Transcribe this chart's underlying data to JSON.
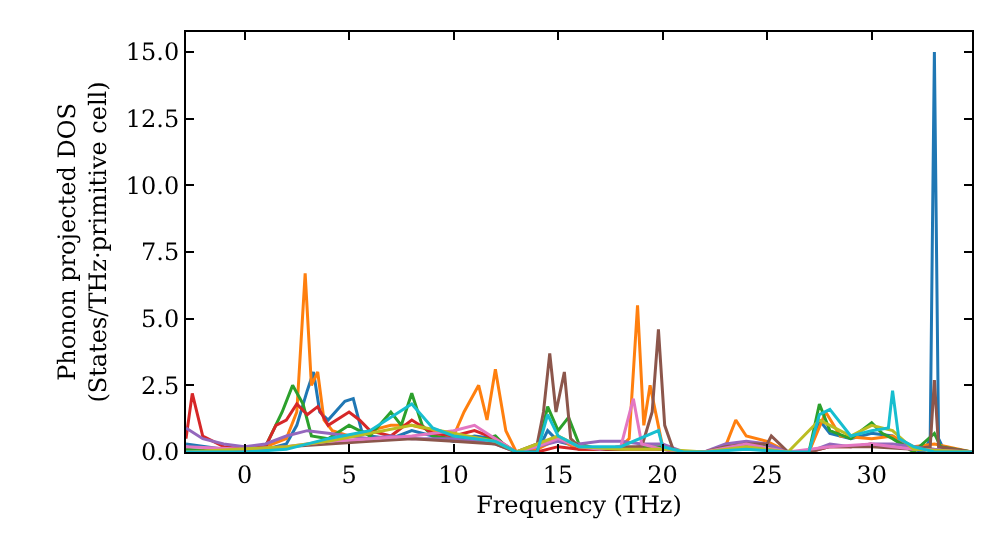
{
  "chart_data": {
    "type": "line",
    "xlabel": "Frequency (THz)",
    "ylabel": "Phonon projected DOS\n(States/THz·primitive cell)",
    "xlim": [
      -2.8,
      34.8
    ],
    "ylim": [
      0,
      15.75
    ],
    "xticks": [
      0,
      5,
      10,
      15,
      20,
      25,
      30
    ],
    "yticks": [
      {
        "value": 0,
        "label": "0.0"
      },
      {
        "value": 2.5,
        "label": "2.5"
      },
      {
        "value": 5,
        "label": "5.0"
      },
      {
        "value": 7.5,
        "label": "7.5"
      },
      {
        "value": 10,
        "label": "10.0"
      },
      {
        "value": 12.5,
        "label": "12.5"
      },
      {
        "value": 15,
        "label": "15.0"
      }
    ],
    "grid": false,
    "marker": "none",
    "line_style": "solid",
    "series": [
      {
        "color": "#1f77b4",
        "x": [
          -2.8,
          -1,
          1,
          2,
          2.5,
          3,
          3.3,
          3.6,
          4,
          4.8,
          5.2,
          5.6,
          6,
          7,
          8,
          9,
          10,
          11,
          12,
          12.5,
          13,
          14,
          14.5,
          15,
          15.5,
          16,
          17,
          18,
          19,
          20,
          21,
          22,
          23,
          24,
          25,
          26,
          27,
          27.5,
          28,
          29,
          30,
          31,
          31.5,
          32,
          32.5,
          32.8,
          33,
          33.2,
          33.5,
          34.8
        ],
        "values": [
          0.3,
          0.1,
          0.1,
          0.3,
          1.0,
          2.3,
          3.0,
          1.5,
          1.2,
          1.9,
          2.0,
          0.8,
          0.6,
          0.5,
          0.8,
          0.6,
          0.4,
          0.6,
          0.5,
          0.2,
          0,
          0,
          0.8,
          0.4,
          0.3,
          0.1,
          0.1,
          0.1,
          0.2,
          0.1,
          0,
          0,
          0.1,
          0.2,
          0.2,
          0,
          0,
          1.2,
          0.7,
          0.5,
          0.7,
          0.6,
          0.3,
          0.1,
          0,
          0.5,
          15.0,
          0.5,
          0,
          0
        ]
      },
      {
        "color": "#ff7f0e",
        "x": [
          0,
          1,
          2,
          2.5,
          2.9,
          3.2,
          3.5,
          3.8,
          4.2,
          5,
          6,
          7,
          8,
          9,
          10,
          10.5,
          11.2,
          11.6,
          12,
          12.5,
          13,
          14,
          15,
          16,
          17,
          18,
          18.4,
          18.8,
          19.1,
          19.4,
          20,
          21,
          22,
          23,
          23.5,
          24,
          25,
          26,
          27,
          27.8,
          28.5,
          30,
          31,
          32,
          33,
          34.8
        ],
        "values": [
          0.1,
          0.2,
          0.5,
          1.5,
          6.7,
          2.5,
          3.0,
          1.2,
          0.8,
          0.6,
          0.8,
          1.0,
          1.0,
          0.8,
          0.6,
          1.5,
          2.5,
          1.2,
          3.1,
          0.8,
          0,
          0.1,
          0.5,
          0.1,
          0.1,
          0.2,
          0.5,
          5.5,
          1.0,
          2.5,
          0.2,
          0,
          0,
          0.2,
          1.2,
          0.6,
          0.4,
          0,
          0,
          1.5,
          0.6,
          0.5,
          0.6,
          0.2,
          0.3,
          0
        ]
      },
      {
        "color": "#2ca02c",
        "x": [
          -2.8,
          -1,
          0,
          1,
          1.8,
          2.3,
          2.8,
          3.2,
          4,
          5,
          6,
          7,
          7.5,
          8,
          8.5,
          9,
          10,
          11,
          12,
          12.5,
          13,
          14,
          14.5,
          15,
          15.5,
          16,
          17,
          18,
          19,
          20,
          21,
          22,
          23,
          24,
          25,
          26,
          27,
          27.5,
          28,
          29,
          30,
          30.5,
          31,
          32,
          33,
          33.3,
          34.8
        ],
        "values": [
          0.1,
          0,
          0,
          0.2,
          1.5,
          2.5,
          1.8,
          0.6,
          0.5,
          1.0,
          0.6,
          1.5,
          1.0,
          2.2,
          1.0,
          0.6,
          0.5,
          0.4,
          0.6,
          0.2,
          0,
          0,
          1.7,
          0.8,
          1.3,
          0.3,
          0.1,
          0.1,
          0.2,
          0.2,
          0,
          0,
          0.1,
          0.2,
          0.2,
          0,
          0,
          1.8,
          0.8,
          0.5,
          1.1,
          0.7,
          0.5,
          0,
          0.7,
          0.2,
          0
        ]
      },
      {
        "color": "#d62728",
        "x": [
          -2.8,
          -2.5,
          -2,
          -1.5,
          -1,
          0,
          1,
          1.5,
          2,
          2.5,
          3,
          3.5,
          4,
          5,
          5.5,
          6,
          7,
          8,
          9,
          10,
          11,
          12,
          13,
          14,
          15,
          16,
          17,
          18,
          19,
          20,
          21,
          22,
          23,
          24,
          25,
          26,
          27,
          28,
          29,
          30
        ],
        "values": [
          0.5,
          2.2,
          0.6,
          0.4,
          0.2,
          0.1,
          0.2,
          1.0,
          1.2,
          1.8,
          1.4,
          1.7,
          1.0,
          1.5,
          1.2,
          0.8,
          0.6,
          1.2,
          0.7,
          0.6,
          0.8,
          0.5,
          0,
          0,
          0.2,
          0.1,
          0.1,
          0.1,
          0.1,
          0.1,
          0,
          0,
          0.1,
          0.1,
          0.1,
          0,
          0,
          0.2,
          0.2,
          0.3
        ]
      },
      {
        "color": "#9467bd",
        "x": [
          -2.8,
          -2,
          -1,
          0,
          1,
          2,
          3,
          4,
          5,
          6,
          7,
          8,
          9,
          10,
          11,
          12,
          13,
          14,
          15,
          16,
          17,
          18,
          19,
          20,
          21,
          22,
          23,
          24,
          25,
          26,
          27,
          28,
          29,
          30,
          31,
          32,
          33,
          34.8
        ],
        "values": [
          0.9,
          0.5,
          0.3,
          0.2,
          0.3,
          0.6,
          0.8,
          0.7,
          0.6,
          0.5,
          0.6,
          0.5,
          0.5,
          0.5,
          0.4,
          0.3,
          0,
          0.2,
          0.4,
          0.3,
          0.4,
          0.4,
          0.3,
          0.3,
          0,
          0,
          0.3,
          0.4,
          0.3,
          0,
          0,
          0.3,
          0.2,
          0.3,
          0.3,
          0.2,
          0.1,
          0
        ]
      },
      {
        "color": "#8c564b",
        "x": [
          -2.8,
          0,
          2,
          4,
          6,
          8,
          10,
          12,
          13,
          14,
          14.3,
          14.6,
          14.9,
          15.3,
          15.6,
          16,
          17,
          18,
          19,
          19.5,
          19.8,
          20.1,
          20.5,
          21,
          22,
          23,
          24,
          25,
          25.2,
          26,
          27,
          28,
          30,
          32,
          32.8,
          33,
          33.2,
          34.8
        ],
        "values": [
          0,
          0.1,
          0.2,
          0.3,
          0.4,
          0.5,
          0.4,
          0.3,
          0,
          0.3,
          1.5,
          3.7,
          1.5,
          3.0,
          0.5,
          0.2,
          0.1,
          0.2,
          0.2,
          1.5,
          4.6,
          1.0,
          0.1,
          0,
          0,
          0.2,
          0.3,
          0.3,
          0.6,
          0,
          0,
          0.2,
          0.2,
          0.1,
          0.2,
          2.7,
          0.2,
          0
        ]
      },
      {
        "color": "#e377c2",
        "x": [
          -2.8,
          0,
          2,
          4,
          6,
          8,
          10,
          11,
          12,
          13,
          14,
          15,
          16,
          17,
          18,
          18.6,
          19,
          20,
          21,
          22,
          24,
          26,
          28,
          30,
          32,
          34.8
        ],
        "values": [
          0.2,
          0.1,
          0.2,
          0.4,
          0.5,
          0.6,
          0.8,
          1.0,
          0.5,
          0,
          0.2,
          0.5,
          0.2,
          0.1,
          0.2,
          2.0,
          0.3,
          0.1,
          0,
          0,
          0.3,
          0,
          0.2,
          0.3,
          0.1,
          0
        ]
      },
      {
        "color": "#bcbd22",
        "x": [
          -2.8,
          2,
          4,
          6,
          8,
          10,
          12,
          13,
          14,
          15,
          16,
          18,
          20,
          22,
          24,
          26,
          27.5,
          28,
          29,
          30,
          31,
          32,
          34.8
        ],
        "values": [
          0,
          0.2,
          0.4,
          0.7,
          1.0,
          0.7,
          0.4,
          0,
          0.3,
          0.6,
          0.2,
          0.1,
          0.1,
          0,
          0.2,
          0,
          1.2,
          1.0,
          0.6,
          1.0,
          0.8,
          0.1,
          0
        ]
      },
      {
        "color": "#17becf",
        "x": [
          -2.8,
          0,
          2,
          4,
          6,
          8,
          9,
          10,
          12,
          13,
          14,
          14.5,
          15,
          16,
          18,
          19.8,
          20,
          21,
          22,
          24,
          26,
          27,
          27.5,
          28,
          29,
          30,
          30.8,
          31,
          31.3,
          32,
          33,
          34.8
        ],
        "values": [
          0,
          0,
          0.1,
          0.5,
          0.8,
          1.8,
          0.9,
          0.6,
          0.4,
          0,
          0,
          1.4,
          0.6,
          0.2,
          0.2,
          0.8,
          0.2,
          0,
          0,
          0.1,
          0,
          0,
          1.4,
          1.6,
          0.6,
          0.8,
          0.9,
          2.3,
          0.5,
          0.2,
          0,
          0
        ]
      }
    ]
  }
}
